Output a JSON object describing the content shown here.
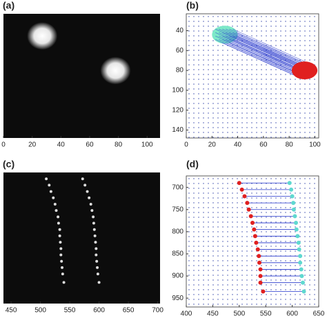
{
  "chart_data": [
    {
      "type": "image",
      "label": "(a)",
      "background": "#0c0c0c",
      "color": "#ffffff",
      "xlim": [
        0,
        109
      ],
      "ylim": [
        21,
        150
      ],
      "y_inverted": true,
      "xticks": [
        0,
        20,
        40,
        60,
        80,
        100
      ],
      "blobs": {
        "x": [
          27,
          78
        ],
        "y": [
          44,
          80
        ]
      }
    },
    {
      "type": "quiver",
      "label": "(b)",
      "grid_color": "#3344aa",
      "arrow_color": "#2233cc",
      "xlim": [
        0,
        103
      ],
      "ylim": [
        23,
        148
      ],
      "y_inverted": true,
      "xticks": [
        0,
        20,
        40,
        60,
        80,
        100
      ],
      "yticks": [
        40,
        60,
        80,
        100,
        120,
        140
      ],
      "source": {
        "x": 30,
        "y": 44,
        "rx": 10,
        "ry": 9,
        "color": "#7de8c8"
      },
      "target": {
        "x": 92,
        "y": 80,
        "rx": 10,
        "ry": 9,
        "color": "#e02020"
      }
    },
    {
      "type": "points",
      "label": "(c)",
      "background": "#0c0c0c",
      "color": "#dddddd",
      "xlim": [
        437,
        704
      ],
      "ylim": [
        675,
        985
      ],
      "y_inverted": true,
      "xticks": [
        450,
        500,
        550,
        600,
        650,
        700
      ],
      "series": [
        {
          "x": [
            510,
            515,
            518,
            522,
            525,
            527,
            530,
            531,
            533,
            533,
            534,
            535,
            535,
            536,
            537,
            538,
            540
          ],
          "y": [
            690,
            705,
            720,
            735,
            750,
            765,
            780,
            795,
            810,
            825,
            840,
            855,
            870,
            885,
            900,
            915,
            935
          ]
        },
        {
          "x": [
            572,
            576,
            580,
            583,
            586,
            588,
            590,
            591,
            592,
            593,
            594,
            595,
            595,
            596,
            597,
            598,
            600
          ],
          "y": [
            690,
            705,
            720,
            735,
            750,
            765,
            780,
            795,
            810,
            825,
            840,
            855,
            870,
            885,
            900,
            915,
            935
          ]
        }
      ]
    },
    {
      "type": "matching",
      "label": "(d)",
      "grid_color": "#3344aa",
      "arrow_color": "#2233cc",
      "xlim": [
        400,
        650
      ],
      "ylim": [
        674,
        970
      ],
      "y_inverted": true,
      "xticks": [
        400,
        450,
        500,
        550,
        600,
        650
      ],
      "yticks": [
        700,
        750,
        800,
        850,
        900,
        950
      ],
      "series": [
        {
          "color": "#e02020",
          "x": [
            500,
            505,
            510,
            515,
            518,
            522,
            525,
            528,
            530,
            532,
            535,
            537,
            538,
            540,
            540,
            540,
            545
          ],
          "y": [
            690,
            705,
            720,
            735,
            750,
            765,
            780,
            795,
            810,
            825,
            840,
            855,
            870,
            885,
            900,
            915,
            935
          ]
        },
        {
          "color": "#5fd8d0",
          "x": [
            595,
            598,
            600,
            602,
            603,
            605,
            607,
            608,
            610,
            612,
            613,
            615,
            615,
            617,
            618,
            620,
            622
          ],
          "y": [
            690,
            705,
            720,
            735,
            750,
            765,
            780,
            795,
            810,
            825,
            840,
            855,
            870,
            885,
            900,
            915,
            935
          ]
        }
      ]
    }
  ]
}
